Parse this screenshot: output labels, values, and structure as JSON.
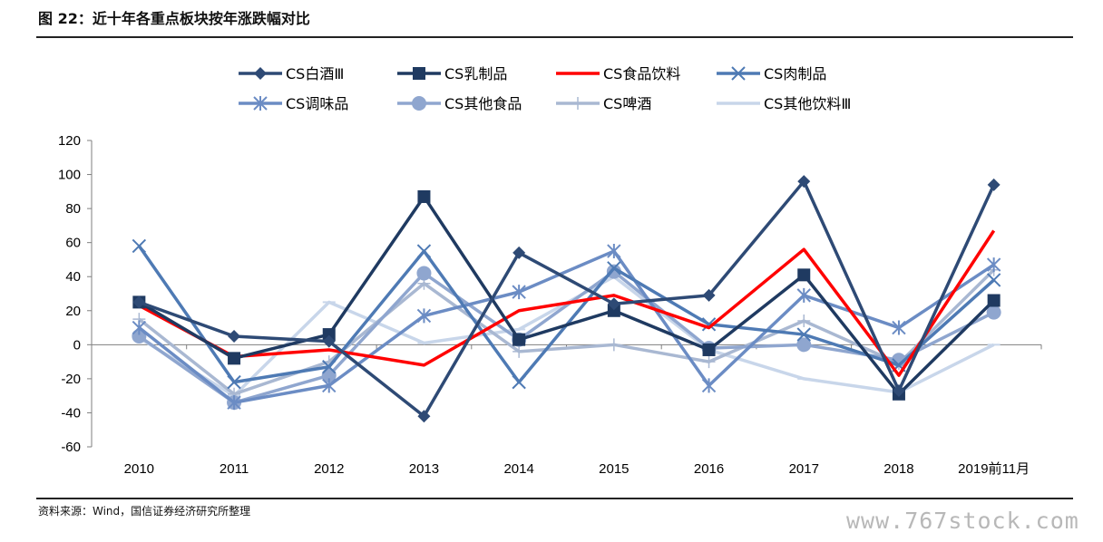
{
  "page": {
    "title": "图 22：近十年各重点板块按年涨跌幅对比",
    "source": "资料来源：Wind，国信证券经济研究所整理",
    "watermark": "www.767stock.com"
  },
  "chart_data": {
    "type": "line",
    "title": "",
    "xlabel": "",
    "ylabel": "",
    "categories": [
      "2010",
      "2011",
      "2012",
      "2013",
      "2014",
      "2015",
      "2016",
      "2017",
      "2018",
      "2019前11月"
    ],
    "ylim": [
      -60,
      120
    ],
    "yticks": [
      -60,
      -40,
      -20,
      0,
      20,
      40,
      60,
      80,
      100,
      120
    ],
    "grid": false,
    "legend_position": "top",
    "series": [
      {
        "name": "CS白酒Ⅲ",
        "color": "#2E4A75",
        "marker": "diamond",
        "values": [
          25,
          5,
          2,
          -42,
          54,
          24,
          29,
          96,
          -27,
          94
        ]
      },
      {
        "name": "CS乳制品",
        "color": "#1F3A61",
        "marker": "square",
        "values": [
          25,
          -8,
          6,
          87,
          3,
          20,
          -3,
          41,
          -29,
          26
        ]
      },
      {
        "name": "CS食品饮料",
        "color": "#FF0000",
        "marker": "none",
        "values": [
          23,
          -7,
          -3,
          -12,
          20,
          29,
          10,
          56,
          -18,
          67
        ]
      },
      {
        "name": "CS肉制品",
        "color": "#4E7AB4",
        "marker": "x",
        "values": [
          58,
          -22,
          -13,
          55,
          -22,
          45,
          12,
          6,
          -12,
          38
        ]
      },
      {
        "name": "CS调味品",
        "color": "#6B8CC4",
        "marker": "star",
        "values": [
          10,
          -34,
          -24,
          17,
          31,
          55,
          -24,
          29,
          10,
          47
        ]
      },
      {
        "name": "CS其他食品",
        "color": "#8FA6CF",
        "marker": "circle",
        "values": [
          5,
          -34,
          -18,
          42,
          3,
          43,
          -2,
          0,
          -9,
          19
        ]
      },
      {
        "name": "CS啤酒",
        "color": "#A9B8D2",
        "marker": "plus",
        "values": [
          15,
          -29,
          -10,
          36,
          -4,
          0,
          -10,
          14,
          -11,
          44
        ]
      },
      {
        "name": "CS其他饮料Ⅲ",
        "color": "#C8D6EA",
        "marker": "dash",
        "values": [
          4,
          -30,
          25,
          1,
          9,
          40,
          -3,
          -20,
          -28,
          0
        ]
      }
    ]
  }
}
